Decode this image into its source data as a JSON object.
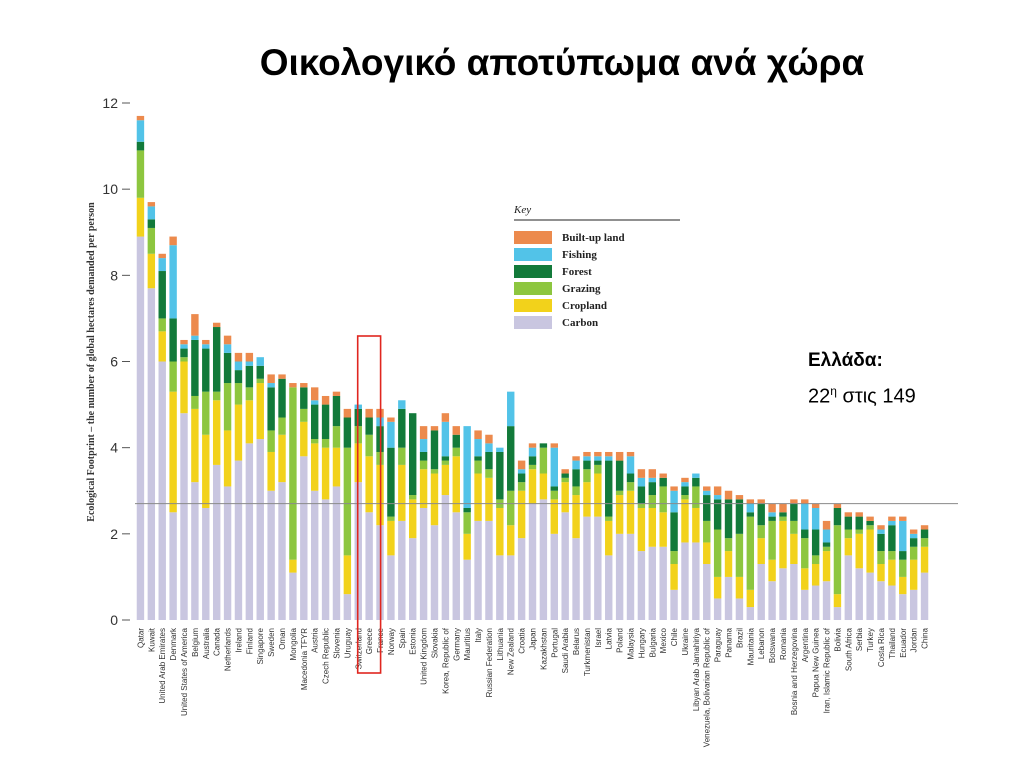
{
  "slide": {
    "title": "Οικολογικό αποτύπωμα ανά χώρα",
    "note_country": "Ελλάδα:",
    "note_rank_number": "22",
    "note_rank_sup": "η",
    "note_rank_suffix": " στις 149"
  },
  "highlight_country": "Greece",
  "chart_data": {
    "type": "bar",
    "stacked": true,
    "title": "",
    "ylabel": "Ecological Footprint – the number of global hectares demanded per person",
    "xlabel": "",
    "ylim": [
      0,
      12
    ],
    "yticks": [
      0,
      2,
      4,
      6,
      8,
      10,
      12
    ],
    "reference_line": 2.7,
    "grid": false,
    "legend": {
      "title": "Key",
      "placement": "upper-center",
      "order": [
        "Built-up land",
        "Fishing",
        "Forest",
        "Grazing",
        "Cropland",
        "Carbon"
      ]
    },
    "colors": {
      "Carbon": "#c9c6e0",
      "Cropland": "#f2d21b",
      "Grazing": "#8dc63f",
      "Forest": "#127a3a",
      "Fishing": "#52c3e8",
      "Built-up land": "#ec8a4d"
    },
    "categories": [
      "Qatar",
      "Kuwait",
      "United Arab Emirates",
      "Denmark",
      "United States of America",
      "Belgium",
      "Australia",
      "Canada",
      "Netherlands",
      "Ireland",
      "Finland",
      "Singapore",
      "Sweden",
      "Oman",
      "Mongolia",
      "Macedonia TFYR",
      "Austria",
      "Czech Republic",
      "Slovenia",
      "Uruguay",
      "Switzerland",
      "Greece",
      "France",
      "Norway",
      "Spain",
      "Estonia",
      "United Kingdom",
      "Slovakia",
      "Korea, Republic of",
      "Germany",
      "Mauritius",
      "Italy",
      "Russian Federation",
      "Lithuania",
      "New Zealand",
      "Croatia",
      "Japan",
      "Kazakhstan",
      "Portugal",
      "Saudi Arabia",
      "Belarus",
      "Turkmenistan",
      "Israel",
      "Latvia",
      "Poland",
      "Malaysia",
      "Hungary",
      "Bulgaria",
      "Mexico",
      "Chile",
      "Ukraine",
      "Libyan Arab Jamahiriya",
      "Venezuela, Bolivarian Republic of",
      "Paraguay",
      "Panama",
      "Brazil",
      "Mauritania",
      "Lebanon",
      "Botswana",
      "Romania",
      "Bosnia and Herzegovina",
      "Argentina",
      "Papua New Guinea",
      "Iran, Islamic Republic of",
      "Bolivia",
      "South Africa",
      "Serbia",
      "Turkey",
      "Costa Rica",
      "Thailand",
      "Ecuador",
      "Jordan",
      "China"
    ],
    "series": [
      {
        "name": "Carbon",
        "values": [
          8.9,
          7.7,
          6.0,
          2.5,
          4.8,
          3.2,
          2.6,
          3.6,
          3.1,
          3.7,
          4.1,
          4.2,
          3.0,
          3.2,
          1.1,
          3.8,
          3.0,
          2.8,
          3.1,
          0.6,
          3.2,
          2.5,
          2.2,
          1.5,
          2.3,
          1.9,
          2.6,
          2.2,
          2.9,
          2.5,
          1.4,
          2.3,
          2.3,
          1.5,
          1.5,
          1.9,
          2.7,
          2.8,
          2.0,
          2.5,
          1.9,
          2.4,
          2.4,
          1.5,
          2.0,
          2.0,
          1.6,
          1.7,
          1.7,
          0.7,
          1.8,
          1.8,
          1.3,
          0.5,
          1.0,
          0.5,
          0.3,
          1.3,
          0.9,
          1.2,
          1.3,
          0.7,
          0.8,
          0.9,
          0.3,
          1.5,
          1.2,
          1.1,
          0.9,
          0.8,
          0.6,
          0.7,
          1.1
        ]
      },
      {
        "name": "Cropland",
        "values": [
          0.9,
          0.8,
          0.7,
          2.8,
          1.2,
          1.7,
          1.7,
          1.5,
          1.3,
          1.3,
          1.0,
          1.3,
          0.9,
          1.1,
          0.3,
          0.8,
          1.1,
          1.2,
          0.9,
          0.9,
          0.9,
          1.3,
          1.4,
          0.8,
          1.3,
          0.9,
          0.9,
          1.2,
          0.7,
          1.3,
          0.6,
          1.1,
          1.0,
          1.1,
          0.7,
          1.1,
          0.8,
          0.6,
          0.8,
          0.7,
          1.0,
          0.8,
          1.0,
          0.8,
          0.9,
          1.0,
          1.0,
          0.9,
          0.8,
          0.6,
          1.0,
          0.8,
          0.5,
          0.5,
          0.6,
          0.5,
          0.4,
          0.6,
          0.5,
          1.1,
          0.7,
          0.5,
          0.5,
          0.7,
          0.3,
          0.4,
          0.8,
          1.0,
          0.4,
          0.6,
          0.4,
          0.7,
          0.6
        ]
      },
      {
        "name": "Grazing",
        "values": [
          1.1,
          0.6,
          0.3,
          0.7,
          0.1,
          0.3,
          1.0,
          0.2,
          1.1,
          0.5,
          0.3,
          0.1,
          0.5,
          0.4,
          4.0,
          0.3,
          0.1,
          0.2,
          0.5,
          2.5,
          0.4,
          0.5,
          0.3,
          0.1,
          0.4,
          0.1,
          0.2,
          0.1,
          0.1,
          0.2,
          0.5,
          0.3,
          0.2,
          0.2,
          0.8,
          0.2,
          0.1,
          0.6,
          0.2,
          0.1,
          0.2,
          0.3,
          0.2,
          0.1,
          0.1,
          0.2,
          0.1,
          0.3,
          0.6,
          0.3,
          0.1,
          0.5,
          0.5,
          1.1,
          0.3,
          1.0,
          1.7,
          0.3,
          0.9,
          0.1,
          0.3,
          0.7,
          0.2,
          0.1,
          1.6,
          0.2,
          0.1,
          0.1,
          0.3,
          0.2,
          0.4,
          0.3,
          0.2
        ]
      },
      {
        "name": "Forest",
        "values": [
          0.2,
          0.2,
          1.1,
          1.0,
          0.2,
          1.3,
          1.0,
          1.5,
          0.7,
          0.3,
          0.5,
          0.3,
          1.0,
          0.9,
          0.0,
          0.5,
          0.8,
          0.8,
          0.7,
          0.7,
          0.4,
          0.4,
          0.6,
          1.6,
          0.9,
          1.9,
          0.2,
          0.9,
          0.1,
          0.3,
          0.1,
          0.1,
          0.4,
          1.1,
          1.5,
          0.2,
          0.2,
          0.1,
          0.1,
          0.1,
          0.4,
          0.2,
          0.1,
          1.3,
          0.7,
          0.2,
          0.4,
          0.3,
          0.2,
          0.9,
          0.2,
          0.2,
          0.6,
          0.7,
          0.9,
          0.8,
          0.1,
          0.5,
          0.1,
          0.1,
          0.4,
          0.2,
          0.6,
          0.1,
          0.4,
          0.3,
          0.3,
          0.1,
          0.4,
          0.6,
          0.2,
          0.2,
          0.2
        ]
      },
      {
        "name": "Fishing",
        "values": [
          0.5,
          0.3,
          0.3,
          1.7,
          0.1,
          0.1,
          0.1,
          0.0,
          0.2,
          0.2,
          0.1,
          0.2,
          0.1,
          0.0,
          0.0,
          0.0,
          0.1,
          0.0,
          0.0,
          0.0,
          0.1,
          0.0,
          0.2,
          0.6,
          0.2,
          0.0,
          0.3,
          0.0,
          0.8,
          0.0,
          1.9,
          0.4,
          0.2,
          0.1,
          0.8,
          0.1,
          0.2,
          0.0,
          0.9,
          0.0,
          0.2,
          0.1,
          0.1,
          0.1,
          0.0,
          0.4,
          0.2,
          0.1,
          0.0,
          0.5,
          0.1,
          0.1,
          0.1,
          0.1,
          0.0,
          0.0,
          0.2,
          0.0,
          0.1,
          0.0,
          0.0,
          0.6,
          0.5,
          0.3,
          0.0,
          0.0,
          0.0,
          0.0,
          0.1,
          0.1,
          0.7,
          0.1,
          0.0
        ]
      },
      {
        "name": "Built-up land",
        "values": [
          0.1,
          0.1,
          0.1,
          0.2,
          0.1,
          0.5,
          0.1,
          0.1,
          0.2,
          0.2,
          0.2,
          0.0,
          0.2,
          0.1,
          0.1,
          0.1,
          0.3,
          0.2,
          0.1,
          0.2,
          0.0,
          0.2,
          0.2,
          0.1,
          0.0,
          0.0,
          0.3,
          0.1,
          0.2,
          0.2,
          0.0,
          0.2,
          0.2,
          0.0,
          0.0,
          0.2,
          0.1,
          0.0,
          0.1,
          0.1,
          0.1,
          0.1,
          0.1,
          0.1,
          0.2,
          0.1,
          0.2,
          0.2,
          0.1,
          0.1,
          0.1,
          0.0,
          0.1,
          0.2,
          0.2,
          0.1,
          0.1,
          0.1,
          0.2,
          0.2,
          0.1,
          0.1,
          0.1,
          0.2,
          0.1,
          0.1,
          0.1,
          0.1,
          0.1,
          0.1,
          0.1,
          0.1,
          0.1
        ]
      }
    ]
  }
}
